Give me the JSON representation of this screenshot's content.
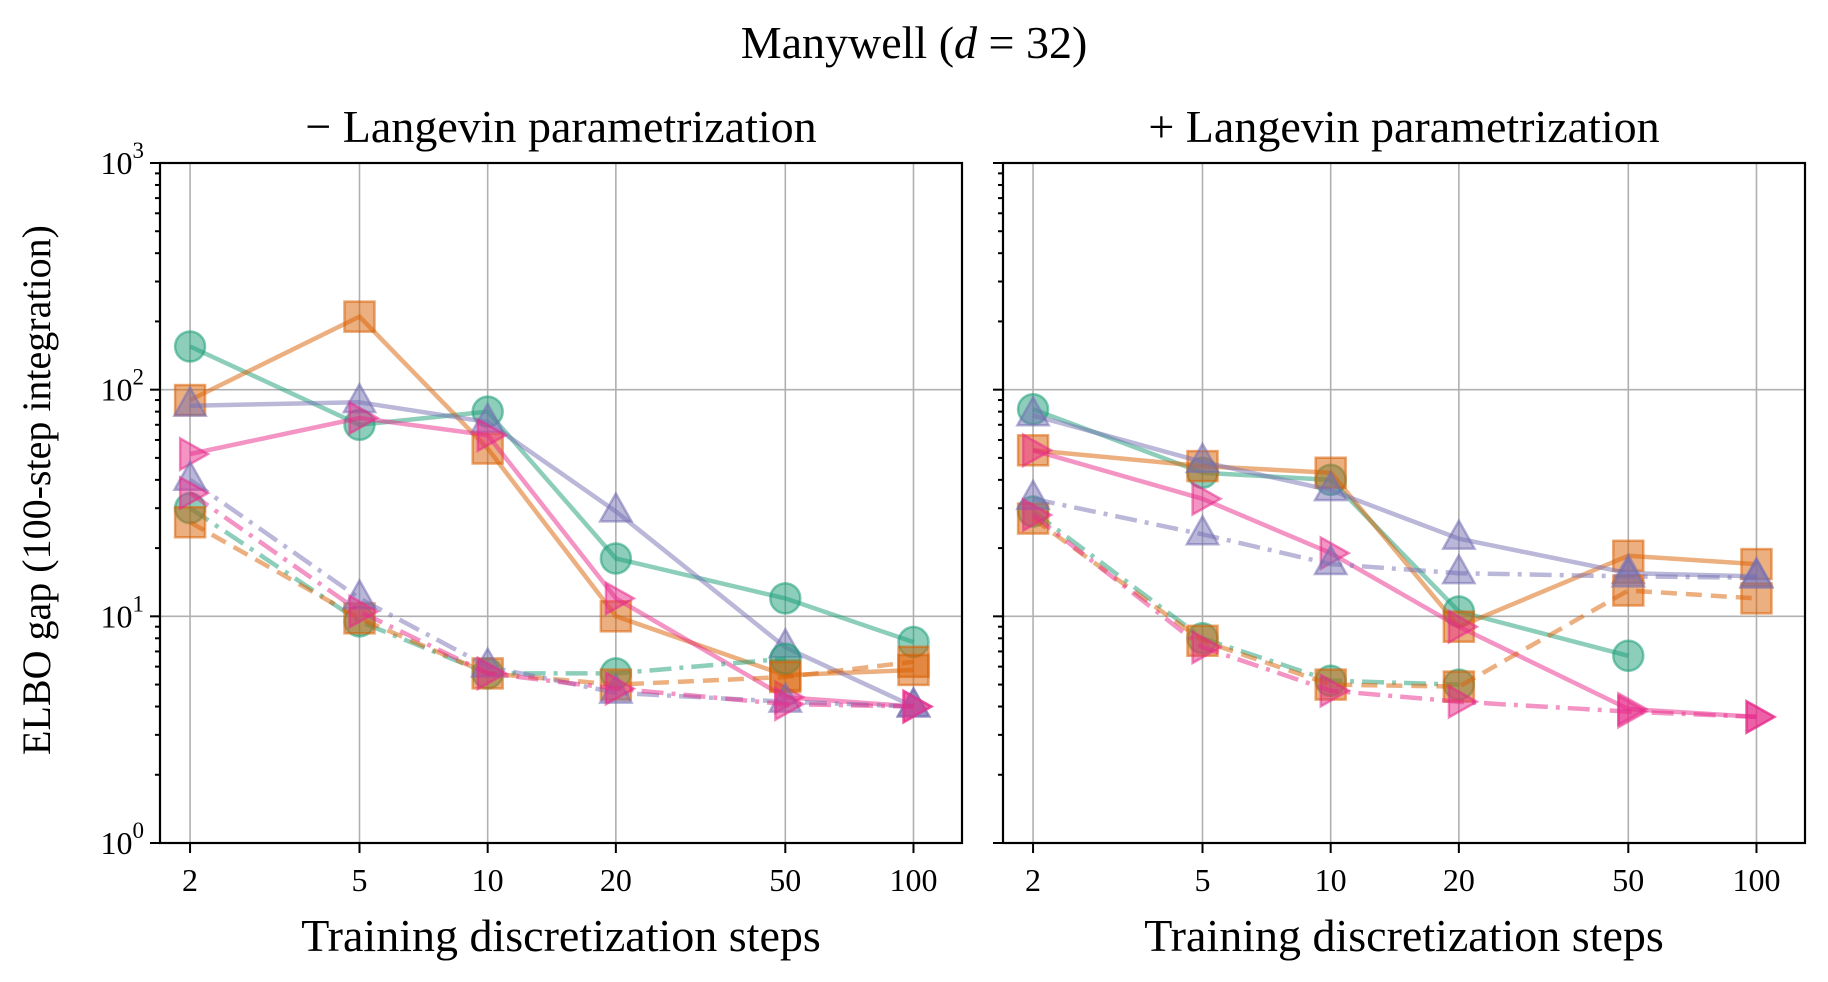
{
  "figure": {
    "suptitle_prefix": "Manywell (",
    "suptitle_var": "d",
    "suptitle_rest": " = 32)",
    "ylabel": "ELBO gap (100-step integration)"
  },
  "chart_data": [
    {
      "type": "line",
      "title": "− Langevin parametrization",
      "xlabel": "Training discretization steps",
      "ylabel": "ELBO gap (100-step integration)",
      "xscale": "log",
      "yscale": "log",
      "xlim": [
        1.7,
        130
      ],
      "ylim": [
        1,
        1000
      ],
      "x": [
        2,
        5,
        10,
        20,
        50,
        100
      ],
      "xticks": [
        "2",
        "5",
        "10",
        "20",
        "50",
        "100"
      ],
      "yticks": [
        {
          "base": "10",
          "exp": "0"
        },
        {
          "base": "10",
          "exp": "1"
        },
        {
          "base": "10",
          "exp": "2"
        },
        {
          "base": "10",
          "exp": "3"
        }
      ],
      "grid": true,
      "series": [
        {
          "name": "teal-circle-solid",
          "color": "#1b9e77",
          "marker": "circle",
          "linestyle": "solid",
          "values": [
            155,
            70,
            80,
            18,
            12,
            7.7
          ]
        },
        {
          "name": "orange-square-solid",
          "color": "#d95f02",
          "marker": "square",
          "linestyle": "solid",
          "values": [
            90,
            210,
            55,
            10,
            5.5,
            5.8
          ]
        },
        {
          "name": "purple-triangle-solid",
          "color": "#7570b3",
          "marker": "triangle-up",
          "linestyle": "solid",
          "values": [
            85,
            88,
            72,
            29,
            7.3,
            4.0
          ]
        },
        {
          "name": "pink-triangle-right-solid",
          "color": "#e7298a",
          "marker": "triangle-right",
          "linestyle": "solid",
          "values": [
            52,
            75,
            63,
            12,
            4.4,
            4.0
          ]
        },
        {
          "name": "teal-circle-dashdot",
          "color": "#1b9e77",
          "marker": "circle",
          "linestyle": "dashdot",
          "values": [
            30,
            9.5,
            5.6,
            5.6,
            6.5,
            null
          ]
        },
        {
          "name": "orange-square-dashed",
          "color": "#d95f02",
          "marker": "square",
          "linestyle": "dashed",
          "values": [
            26,
            9.8,
            5.6,
            5.0,
            5.4,
            6.3
          ]
        },
        {
          "name": "purple-triangle-dashdot",
          "color": "#7570b3",
          "marker": "triangle-up",
          "linestyle": "dashdot",
          "values": [
            40,
            12,
            6.0,
            4.6,
            4.2,
            4.0
          ]
        },
        {
          "name": "pink-triangle-right-dashdot",
          "color": "#e7298a",
          "marker": "triangle-right",
          "linestyle": "dashdot",
          "values": [
            35,
            10.5,
            5.6,
            4.8,
            4.1,
            4.0
          ]
        }
      ]
    },
    {
      "type": "line",
      "title": "+ Langevin parametrization",
      "xlabel": "Training discretization steps",
      "xscale": "log",
      "yscale": "log",
      "xlim": [
        1.7,
        130
      ],
      "ylim": [
        1,
        1000
      ],
      "x": [
        2,
        5,
        10,
        20,
        50,
        100
      ],
      "xticks": [
        "2",
        "5",
        "10",
        "20",
        "50",
        "100"
      ],
      "grid": true,
      "series": [
        {
          "name": "teal-circle-solid",
          "color": "#1b9e77",
          "marker": "circle",
          "linestyle": "solid",
          "values": [
            82,
            43,
            40,
            10.5,
            6.7,
            null
          ]
        },
        {
          "name": "orange-square-solid",
          "color": "#d95f02",
          "marker": "square",
          "linestyle": "solid",
          "values": [
            54,
            46,
            43,
            9.0,
            18.5,
            17
          ]
        },
        {
          "name": "purple-triangle-solid",
          "color": "#7570b3",
          "marker": "triangle-up",
          "linestyle": "solid",
          "values": [
            77,
            48,
            36,
            22,
            15.5,
            15
          ]
        },
        {
          "name": "pink-triangle-right-solid",
          "color": "#e7298a",
          "marker": "triangle-right",
          "linestyle": "solid",
          "values": [
            54,
            33,
            19,
            9.0,
            3.9,
            3.6
          ]
        },
        {
          "name": "teal-circle-dashdot",
          "color": "#1b9e77",
          "marker": "circle",
          "linestyle": "dashdot",
          "values": [
            29,
            8.0,
            5.2,
            5.0,
            null,
            null
          ]
        },
        {
          "name": "orange-square-dashed",
          "color": "#d95f02",
          "marker": "square",
          "linestyle": "dashed",
          "values": [
            27,
            7.8,
            5.0,
            4.9,
            13,
            12
          ]
        },
        {
          "name": "purple-triangle-dashdot",
          "color": "#7570b3",
          "marker": "triangle-up",
          "linestyle": "dashdot",
          "values": [
            33,
            23,
            17,
            15.5,
            15.0,
            14.8
          ]
        },
        {
          "name": "pink-triangle-right-dashdot",
          "color": "#e7298a",
          "marker": "triangle-right",
          "linestyle": "dashdot",
          "values": [
            28,
            7.3,
            4.7,
            4.2,
            3.8,
            3.6
          ]
        }
      ]
    }
  ]
}
